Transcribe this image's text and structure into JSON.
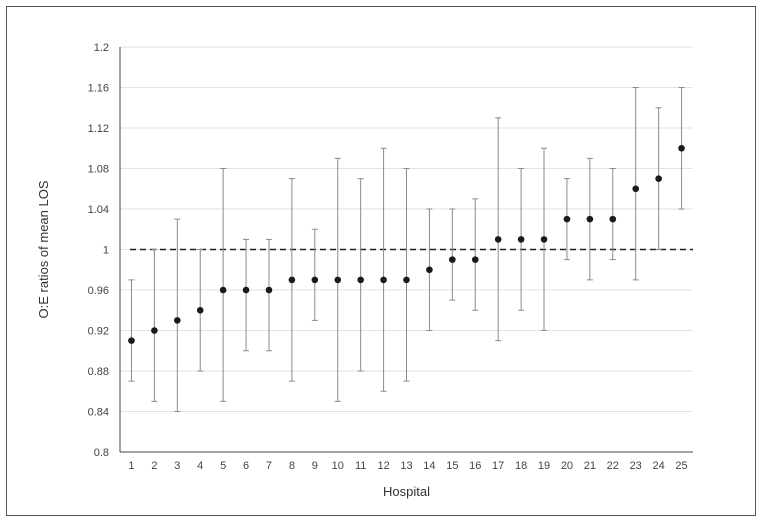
{
  "chart_data": {
    "type": "scatter",
    "title": "",
    "xlabel": "Hospital",
    "ylabel": "O:E ratios of mean LOS",
    "ylim": [
      0.8,
      1.2
    ],
    "yticks": [
      0.8,
      0.84,
      0.88,
      0.92,
      0.96,
      1,
      1.04,
      1.08,
      1.12,
      1.16,
      1.2
    ],
    "ytick_labels": [
      "0.8",
      "0.84",
      "0.88",
      "0.92",
      "0.96",
      "1",
      "1.04",
      "1.08",
      "1.12",
      "1.16",
      "1.2"
    ],
    "grid": true,
    "reference_line": 1,
    "error_bars": true,
    "categories": [
      "1",
      "2",
      "3",
      "4",
      "5",
      "6",
      "7",
      "8",
      "9",
      "10",
      "11",
      "12",
      "13",
      "14",
      "15",
      "16",
      "17",
      "18",
      "19",
      "20",
      "21",
      "22",
      "23",
      "24",
      "25"
    ],
    "values": [
      0.91,
      0.92,
      0.93,
      0.94,
      0.96,
      0.96,
      0.96,
      0.97,
      0.97,
      0.97,
      0.97,
      0.97,
      0.97,
      0.98,
      0.99,
      0.99,
      1.01,
      1.01,
      1.01,
      1.03,
      1.03,
      1.03,
      1.06,
      1.07,
      1.1
    ],
    "lower": [
      0.87,
      0.85,
      0.84,
      0.88,
      0.85,
      0.9,
      0.9,
      0.87,
      0.93,
      0.85,
      0.88,
      0.86,
      0.87,
      0.92,
      0.95,
      0.94,
      0.91,
      0.94,
      0.92,
      0.99,
      0.97,
      0.99,
      0.97,
      1.0,
      1.04
    ],
    "upper": [
      0.97,
      1.0,
      1.03,
      1.0,
      1.08,
      1.01,
      1.01,
      1.07,
      1.02,
      1.09,
      1.07,
      1.1,
      1.08,
      1.04,
      1.04,
      1.05,
      1.13,
      1.08,
      1.1,
      1.07,
      1.09,
      1.08,
      1.16,
      1.14,
      1.16
    ],
    "colors": {
      "point": "#1a1a1a",
      "error_bar": "#8a8a8a",
      "grid": "#e2e2e2",
      "reference": "#222222",
      "axis": "#444444"
    }
  }
}
